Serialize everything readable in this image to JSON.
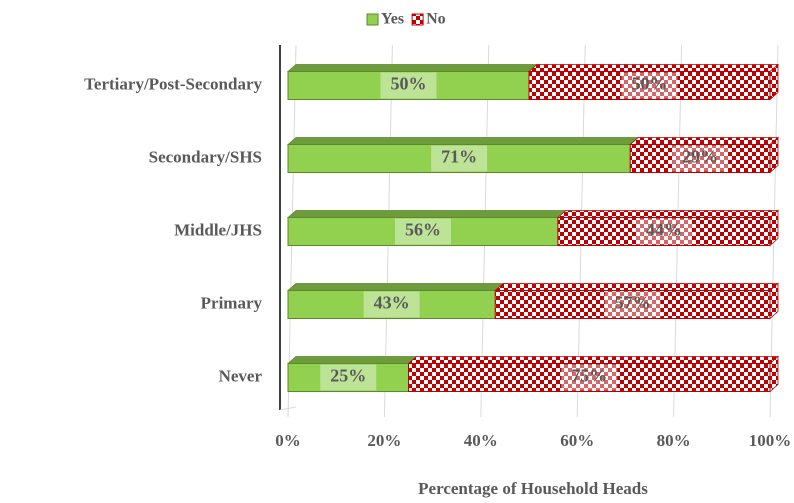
{
  "chart_data": {
    "type": "stacked_bar_horizontal",
    "x_label": "Percentage of Household Heads",
    "categories": [
      "Tertiary/Post-Secondary",
      "Secondary/SHS",
      "Middle/JHS",
      "Primary",
      "Never"
    ],
    "series": [
      {
        "name": "Yes",
        "color": "#92d050",
        "values": [
          50,
          71,
          56,
          43,
          25
        ],
        "value_labels": [
          "50%",
          "71%",
          "56%",
          "43%",
          "25%"
        ]
      },
      {
        "name": "No",
        "color": "#c00000",
        "values": [
          50,
          29,
          44,
          57,
          75
        ],
        "value_labels": [
          "50%",
          "29%",
          "44%",
          "57%",
          "75%"
        ]
      }
    ],
    "xlim": [
      0,
      100
    ],
    "xticks": [
      {
        "value": 0,
        "label": "0%"
      },
      {
        "value": 20,
        "label": "20%"
      },
      {
        "value": 40,
        "label": "40%"
      },
      {
        "value": 60,
        "label": "60%"
      },
      {
        "value": 80,
        "label": "80%"
      },
      {
        "value": 100,
        "label": "100%"
      }
    ],
    "grid": true,
    "legend": "top"
  }
}
